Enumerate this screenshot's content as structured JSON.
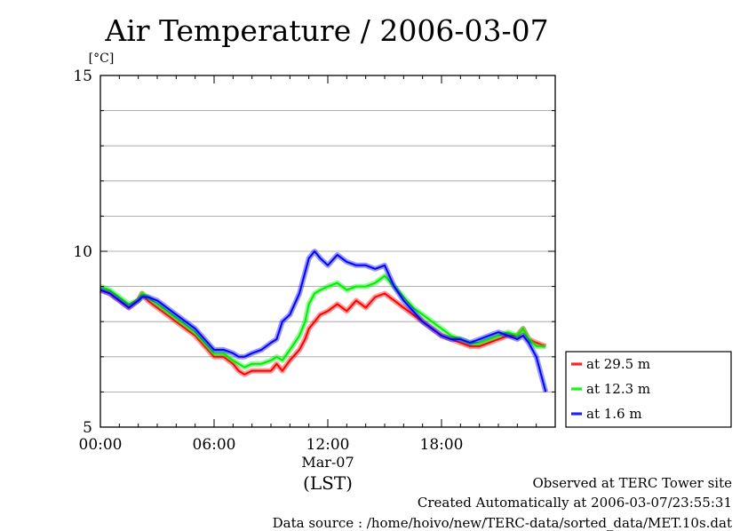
{
  "chart_data": {
    "type": "line",
    "title": "Air Temperature / 2006-03-07",
    "ylabel": "[°C]",
    "ylim": [
      5,
      15
    ],
    "yticks": [
      5,
      10,
      15
    ],
    "ytick_labels": [
      "5",
      "10",
      "15"
    ],
    "xlim": [
      0,
      24
    ],
    "xticks": [
      0,
      6,
      12,
      18
    ],
    "xtick_labels": [
      "00:00",
      "06:00",
      "12:00",
      "18:00"
    ],
    "xdate_label": "Mar-07",
    "xlabel": "(LST)",
    "grid": true,
    "legend_position": "right",
    "series": [
      {
        "name": "at 29.5 m",
        "color": "#ff0000",
        "x": [
          0,
          0.5,
          1,
          1.5,
          2,
          2.2,
          2.5,
          3,
          3.5,
          4,
          4.5,
          5,
          5.5,
          6,
          6.5,
          7,
          7.3,
          7.6,
          8,
          8.5,
          9,
          9.3,
          9.6,
          10,
          10.5,
          10.8,
          11,
          11.3,
          11.6,
          12,
          12.5,
          13,
          13.5,
          14,
          14.5,
          15,
          15.5,
          16,
          16.5,
          17,
          17.5,
          18,
          18.5,
          19,
          19.5,
          20,
          20.5,
          21,
          21.5,
          22,
          22.3,
          22.6,
          23,
          23.5
        ],
        "values": [
          8.9,
          8.8,
          8.6,
          8.4,
          8.6,
          8.8,
          8.6,
          8.4,
          8.2,
          8.0,
          7.8,
          7.6,
          7.3,
          7.0,
          7.0,
          6.8,
          6.6,
          6.5,
          6.6,
          6.6,
          6.6,
          6.8,
          6.6,
          6.9,
          7.2,
          7.5,
          7.8,
          8.0,
          8.2,
          8.3,
          8.5,
          8.3,
          8.6,
          8.4,
          8.7,
          8.8,
          8.6,
          8.4,
          8.2,
          8.0,
          7.8,
          7.6,
          7.5,
          7.4,
          7.3,
          7.3,
          7.4,
          7.5,
          7.6,
          7.6,
          7.8,
          7.5,
          7.4,
          7.3
        ]
      },
      {
        "name": "at 12.3 m",
        "color": "#00ee00",
        "x": [
          0,
          0.5,
          1,
          1.5,
          2,
          2.2,
          2.5,
          3,
          3.5,
          4,
          4.5,
          5,
          5.5,
          6,
          6.5,
          7,
          7.3,
          7.6,
          8,
          8.5,
          9,
          9.3,
          9.6,
          10,
          10.5,
          10.8,
          11,
          11.3,
          11.6,
          12,
          12.5,
          13,
          13.5,
          14,
          14.5,
          15,
          15.5,
          16,
          16.5,
          17,
          17.5,
          18,
          18.5,
          19,
          19.5,
          20,
          20.5,
          21,
          21.5,
          22,
          22.3,
          22.6,
          23,
          23.5
        ],
        "values": [
          9.0,
          8.9,
          8.7,
          8.5,
          8.6,
          8.8,
          8.7,
          8.5,
          8.3,
          8.1,
          7.9,
          7.7,
          7.4,
          7.1,
          7.1,
          6.9,
          6.8,
          6.7,
          6.8,
          6.8,
          6.9,
          7.0,
          6.9,
          7.2,
          7.6,
          8.0,
          8.5,
          8.8,
          8.9,
          9.0,
          9.1,
          8.9,
          9.0,
          9.0,
          9.1,
          9.3,
          9.0,
          8.7,
          8.4,
          8.2,
          8.0,
          7.8,
          7.6,
          7.5,
          7.4,
          7.4,
          7.5,
          7.6,
          7.7,
          7.6,
          7.8,
          7.5,
          7.3,
          7.3
        ]
      },
      {
        "name": "at 1.6 m",
        "color": "#0000ff",
        "x": [
          0,
          0.5,
          1,
          1.5,
          2,
          2.2,
          2.5,
          3,
          3.5,
          4,
          4.5,
          5,
          5.5,
          6,
          6.5,
          7,
          7.3,
          7.6,
          8,
          8.5,
          9,
          9.3,
          9.6,
          10,
          10.5,
          10.8,
          11,
          11.3,
          11.6,
          12,
          12.5,
          13,
          13.5,
          14,
          14.5,
          15,
          15.5,
          16,
          16.5,
          17,
          17.5,
          18,
          18.5,
          19,
          19.5,
          20,
          20.5,
          21,
          21.5,
          22,
          22.3,
          22.6,
          23,
          23.5
        ],
        "values": [
          8.9,
          8.8,
          8.6,
          8.4,
          8.6,
          8.7,
          8.7,
          8.6,
          8.4,
          8.2,
          8.0,
          7.8,
          7.5,
          7.2,
          7.2,
          7.1,
          7.0,
          7.0,
          7.1,
          7.2,
          7.4,
          7.5,
          8.0,
          8.2,
          8.8,
          9.4,
          9.8,
          10.0,
          9.8,
          9.6,
          9.9,
          9.7,
          9.6,
          9.6,
          9.5,
          9.6,
          9.0,
          8.6,
          8.3,
          8.0,
          7.8,
          7.6,
          7.5,
          7.5,
          7.4,
          7.5,
          7.6,
          7.7,
          7.6,
          7.5,
          7.6,
          7.4,
          7.0,
          6.0
        ]
      }
    ]
  },
  "footer": {
    "site": "Observed at TERC Tower site",
    "created": "Created Automatically at 2006-03-07/23:55:31",
    "source": "Data source : /home/hoivo/new/TERC-data/sorted_data/MET.10s.dat"
  }
}
